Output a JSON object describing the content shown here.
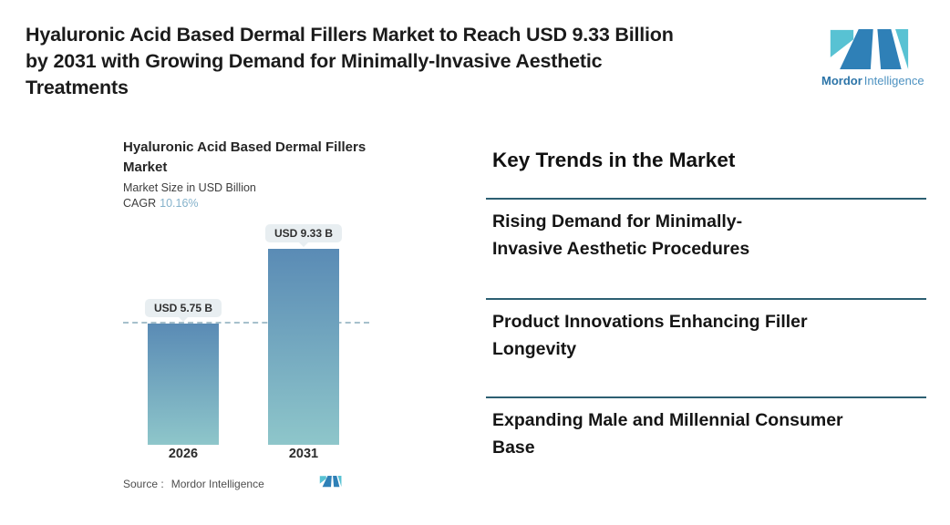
{
  "header": {
    "title_lines": [
      "Hyaluronic Acid Based Dermal Fillers Market to Reach USD 9.33 Billion",
      "by 2031 with Growing Demand for Minimally-Invasive Aesthetic",
      "Treatments"
    ],
    "logo": {
      "brand_bold": "Mordor",
      "brand_light": "Intelligence"
    }
  },
  "chart": {
    "title_lines": [
      "Hyaluronic Acid Based Dermal Fillers",
      "Market"
    ],
    "subtitle": "Market Size in USD Billion",
    "cagr_label": "CAGR",
    "source_label": "Source :",
    "source_value": "Mordor Intelligence"
  },
  "chart_data": {
    "type": "bar",
    "title": "Hyaluronic Acid Based Dermal Fillers Market",
    "ylabel": "Market Size in USD Billion",
    "categories": [
      "2026",
      "2031"
    ],
    "values": [
      5.75,
      9.33
    ],
    "bar_labels": [
      "USD 5.75 B",
      "USD 9.33 B"
    ],
    "cagr": "10.16%",
    "reference_line": 5.75,
    "ylim": [
      0,
      10
    ],
    "grid": false,
    "legend": false
  },
  "trends": {
    "heading": "Key Trends in the Market",
    "items": [
      {
        "lines": [
          "Rising Demand for Minimally-",
          "Invasive Aesthetic Procedures"
        ]
      },
      {
        "lines": [
          "Product Innovations Enhancing Filler",
          "Longevity"
        ]
      },
      {
        "lines": [
          "Expanding Male and Millennial Consumer",
          "Base"
        ]
      }
    ]
  },
  "icons": {
    "logo_mark": "mordor-m-mark"
  },
  "colors": {
    "accent_teal": "#58C2D3",
    "accent_blue": "#2F80B7",
    "divider": "#2C5F72",
    "bar_top": "#5A8BB5",
    "bar_bottom": "#8EC6CA",
    "cagr_value": "#85B2CB",
    "dashed_line": "#A6C0CC",
    "brand_text": "#2C74A8",
    "brand_text_light": "#4D92C1",
    "pill_bg": "#E8EEF1"
  }
}
